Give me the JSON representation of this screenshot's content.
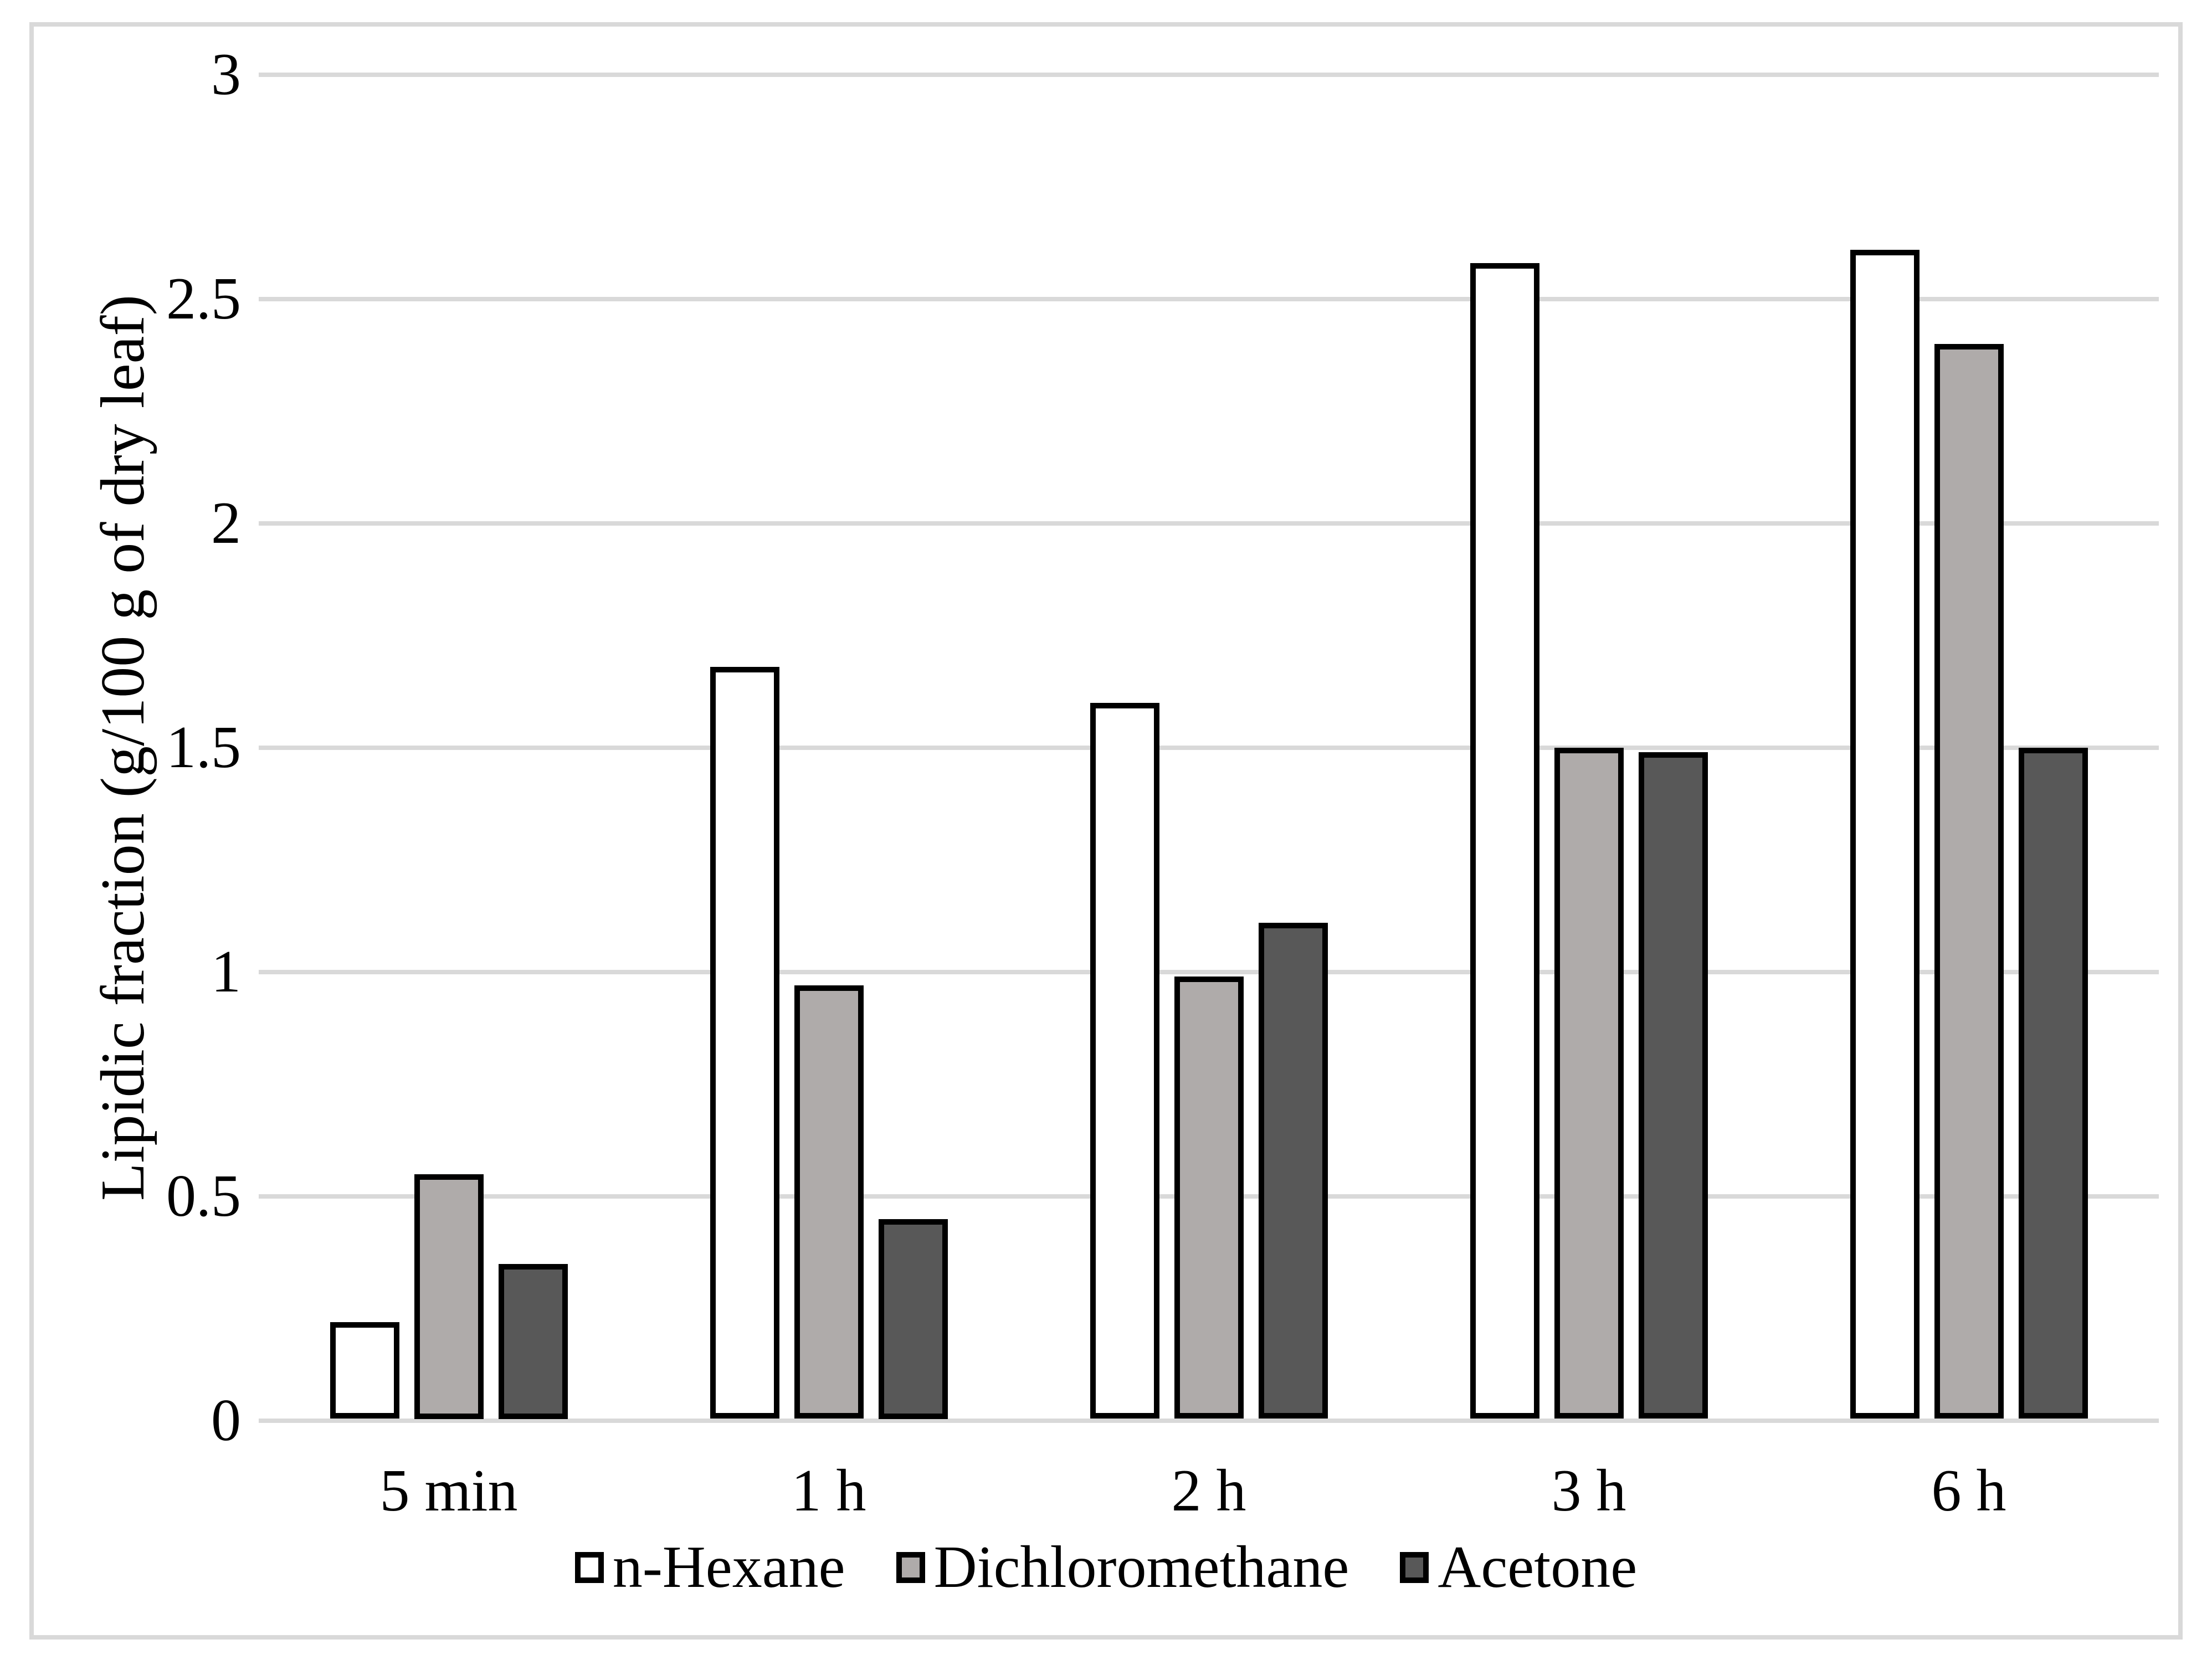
{
  "figure": {
    "background_color": "#FFFFFF",
    "frame_color": "#D9D9D9"
  },
  "chart_data": {
    "type": "bar",
    "title": "",
    "categories": [
      "5 min",
      "1 h",
      "2 h",
      "3 h",
      "6 h"
    ],
    "series": [
      {
        "name": "n-Hexane",
        "fill": "#FFFFFF",
        "border": "#000000",
        "values": [
          0.22,
          1.68,
          1.6,
          2.58,
          2.61
        ]
      },
      {
        "name": "Dichloromethane",
        "fill": "#AFABAA",
        "border": "#000000",
        "values": [
          0.55,
          0.97,
          0.99,
          1.5,
          2.4
        ]
      },
      {
        "name": "Acetone",
        "fill": "#585858",
        "border": "#000000",
        "values": [
          0.35,
          0.45,
          1.11,
          1.49,
          1.5
        ]
      }
    ],
    "xlabel": "",
    "ylabel": "Lipidic fraction (g/100 g of dry leaf)",
    "ylim": [
      0,
      3
    ],
    "yticks": [
      0,
      0.5,
      1,
      1.5,
      2,
      2.5,
      3
    ],
    "ytick_labels": [
      "0",
      "0.5",
      "1",
      "1.5",
      "2",
      "2.5",
      "3"
    ],
    "grid": "horizontal",
    "gridline_color": "#D9D9D9",
    "legend_position": "bottom"
  }
}
